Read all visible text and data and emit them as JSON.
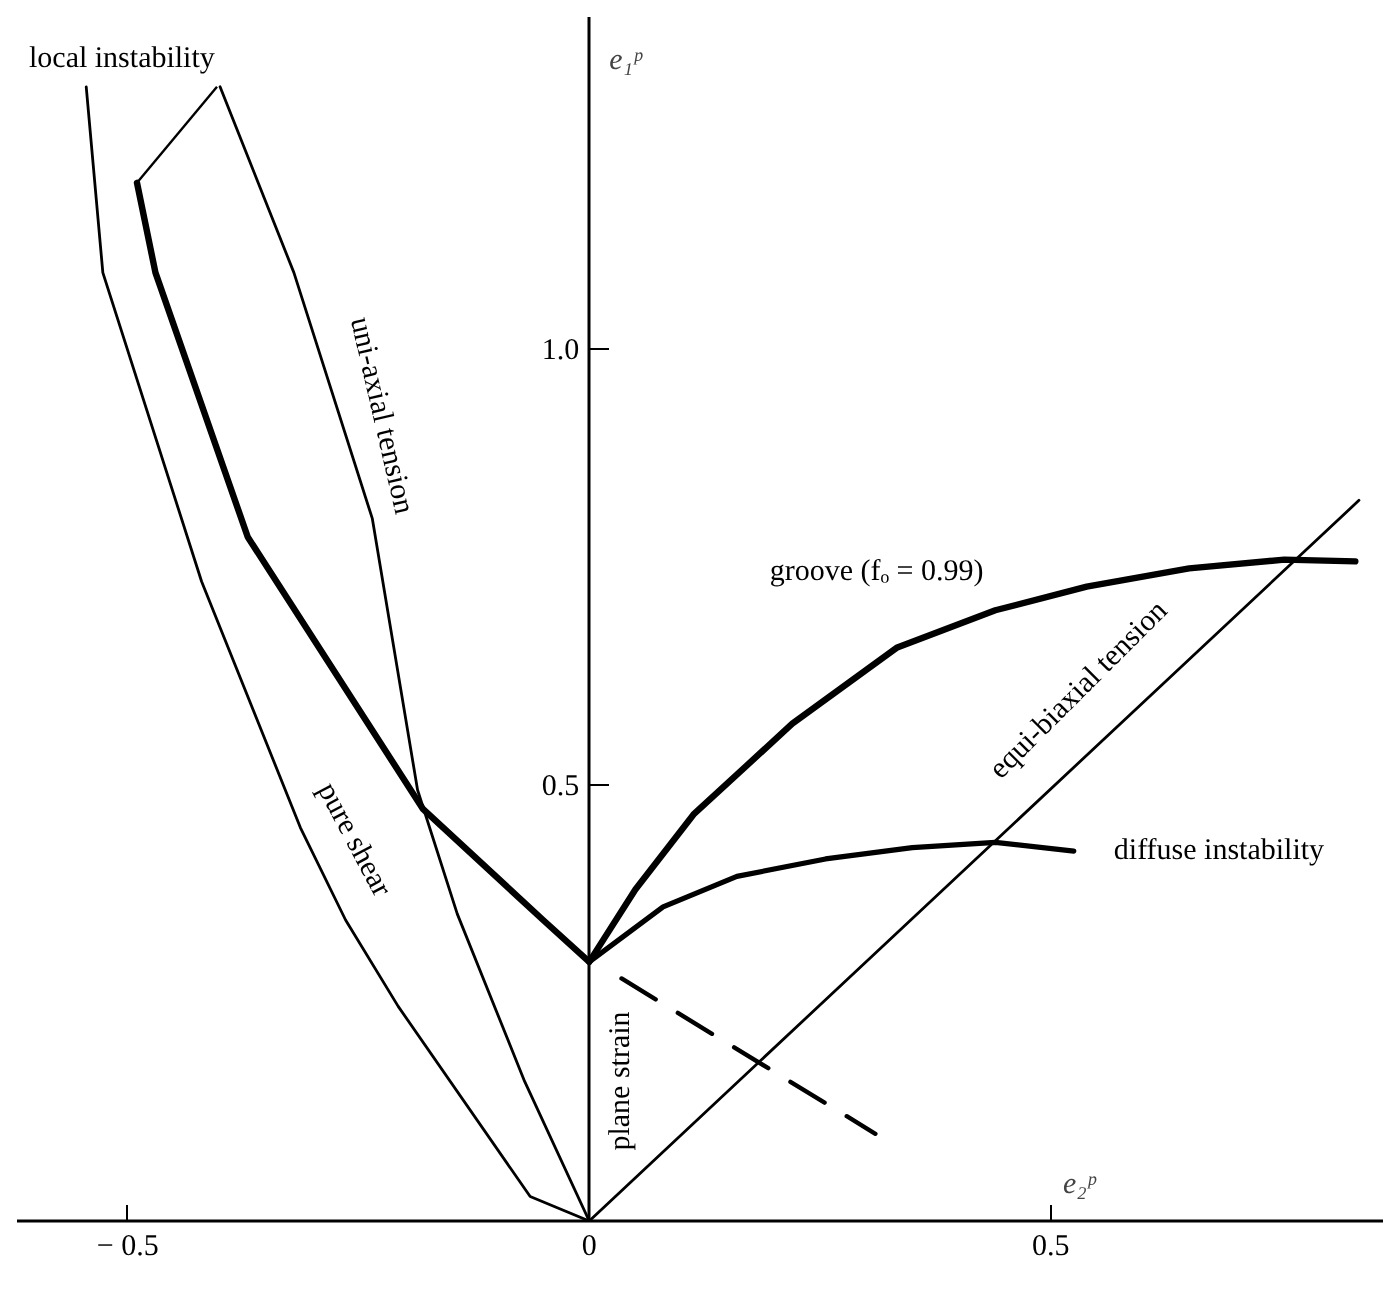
{
  "chart_data": {
    "type": "line",
    "xlabel": "e₂ᵖ",
    "ylabel": "e₁ᵖ",
    "xlim": [
      -0.62,
      0.86
    ],
    "ylim": [
      0,
      1.38
    ],
    "xticks": [
      {
        "value": -0.5,
        "label": "− 0.5"
      },
      0,
      0.5
    ],
    "yticks": [
      0.5,
      {
        "value": 1.0,
        "label": "1.0"
      }
    ],
    "grid": false,
    "marker": "none",
    "annotations": [
      "plane strain"
    ],
    "series": [
      {
        "name": "pure shear",
        "color": "#000000",
        "line_style": "solid",
        "x": [
          -0.545,
          -0.527,
          -0.42,
          -0.313,
          -0.264,
          -0.207,
          -0.064,
          0
        ],
        "values": [
          1.3,
          1.087,
          0.733,
          0.451,
          0.345,
          0.246,
          0.028,
          0
        ]
      },
      {
        "name": "uni-axial tension",
        "color": "#000000",
        "line_style": "solid",
        "x": [
          -0.4,
          -0.32,
          -0.235,
          -0.186,
          -0.143,
          -0.07,
          0
        ],
        "values": [
          1.3,
          1.087,
          0.805,
          0.494,
          0.352,
          0.16,
          0
        ]
      },
      {
        "name": "local instability",
        "color": "#000000",
        "line_style": "solid",
        "x": [
          -0.49,
          -0.47,
          -0.37,
          -0.18,
          -0.05,
          0
        ],
        "values": [
          1.19,
          1.087,
          0.784,
          0.472,
          0.345,
          0.297
        ]
      },
      {
        "name": "groove (fₒ = 0.99)",
        "color": "#000000",
        "line_style": "solid",
        "x": [
          0,
          0.05,
          0.113,
          0.22,
          0.333,
          0.44,
          0.539,
          0.65,
          0.753,
          0.83
        ],
        "values": [
          0.297,
          0.38,
          0.466,
          0.57,
          0.657,
          0.7,
          0.727,
          0.748,
          0.758,
          0.756
        ]
      },
      {
        "name": "diffuse instability",
        "color": "#000000",
        "line_style": "solid",
        "x": [
          0,
          0.08,
          0.16,
          0.256,
          0.35,
          0.44,
          0.525
        ],
        "values": [
          0.297,
          0.36,
          0.395,
          0.415,
          0.428,
          0.434,
          0.424
        ]
      },
      {
        "name": "equi-biaxial tension",
        "color": "#000000",
        "line_style": "solid",
        "x": [
          0,
          0.834
        ],
        "values": [
          0,
          0.826
        ]
      },
      {
        "color": "#000000",
        "line_style": "dashed",
        "x": [
          0.035,
          0.31
        ],
        "values": [
          0.278,
          0.1
        ]
      }
    ]
  }
}
